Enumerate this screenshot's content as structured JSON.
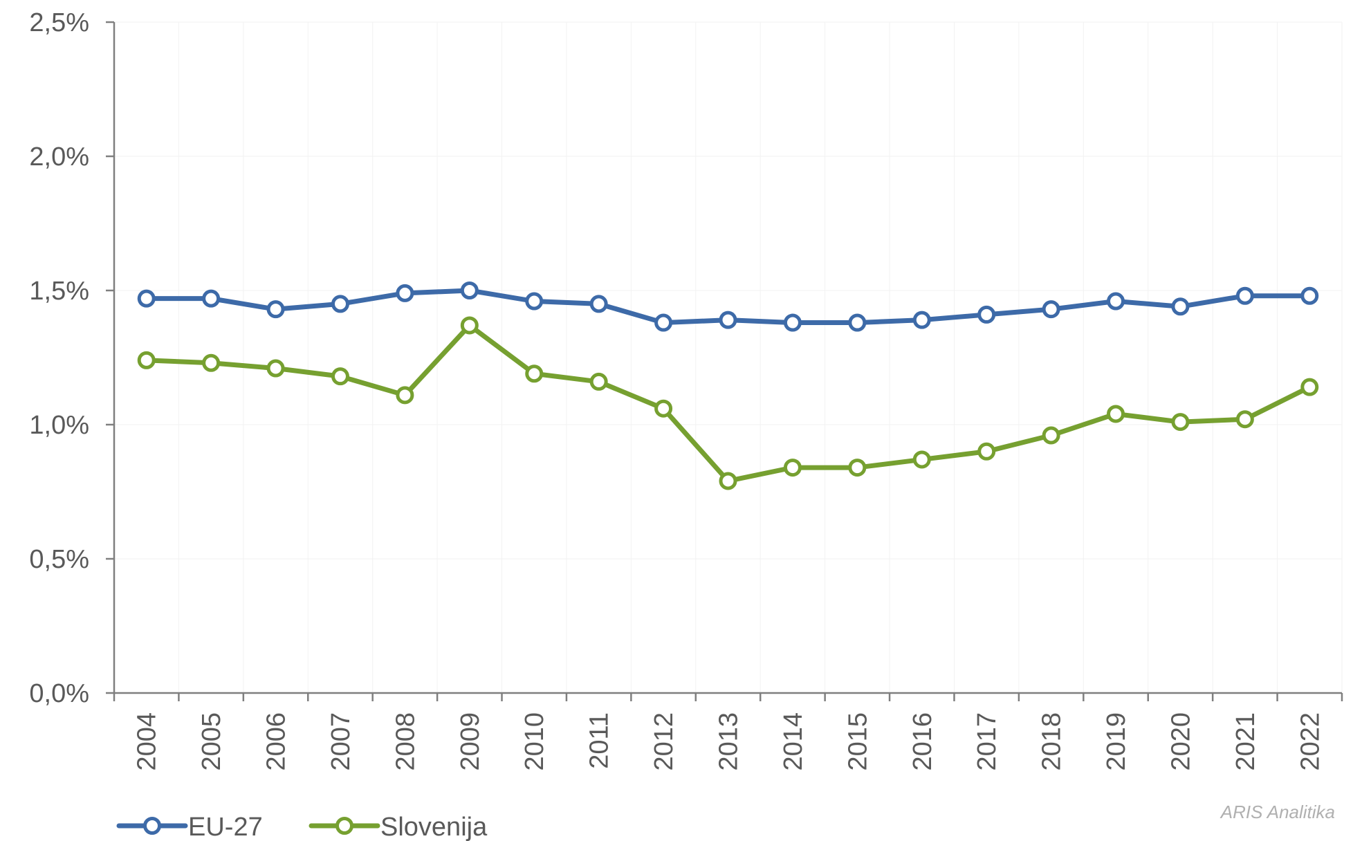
{
  "chart_data": {
    "type": "line",
    "categories": [
      "2004",
      "2005",
      "2006",
      "2007",
      "2008",
      "2009",
      "2010",
      "2011",
      "2012",
      "2013",
      "2014",
      "2015",
      "2016",
      "2017",
      "2018",
      "2019",
      "2020",
      "2021",
      "2022"
    ],
    "x": [
      "2004",
      "2005",
      "2006",
      "2007",
      "2008",
      "2009",
      "2010",
      "2011",
      "2012",
      "2013",
      "2014",
      "2015",
      "2016",
      "2017",
      "2018",
      "2019",
      "2020",
      "2021",
      "2022"
    ],
    "series": [
      {
        "name": "EU-27",
        "color": "#3d6aa8",
        "values": [
          1.47,
          1.47,
          1.43,
          1.45,
          1.49,
          1.5,
          1.46,
          1.45,
          1.38,
          1.39,
          1.38,
          1.38,
          1.39,
          1.41,
          1.43,
          1.46,
          1.44,
          1.48,
          1.48
        ]
      },
      {
        "name": "Slovenija",
        "color": "#76a030",
        "values": [
          1.24,
          1.23,
          1.21,
          1.18,
          1.11,
          1.37,
          1.19,
          1.16,
          1.06,
          0.79,
          0.84,
          0.84,
          0.87,
          0.9,
          0.96,
          1.04,
          1.01,
          1.02,
          1.14
        ]
      }
    ],
    "ylim": [
      0,
      2.5
    ],
    "yticks": [
      0.0,
      0.5,
      1.0,
      1.5,
      2.0,
      2.5
    ],
    "ytick_labels": [
      "0,0%",
      "0,5%",
      "1,0%",
      "1,5%",
      "2,0%",
      "2,5%"
    ],
    "grid": true,
    "legend": "bottom-left",
    "title": "",
    "xlabel": "",
    "ylabel": ""
  },
  "credit": "ARIS Analitika"
}
